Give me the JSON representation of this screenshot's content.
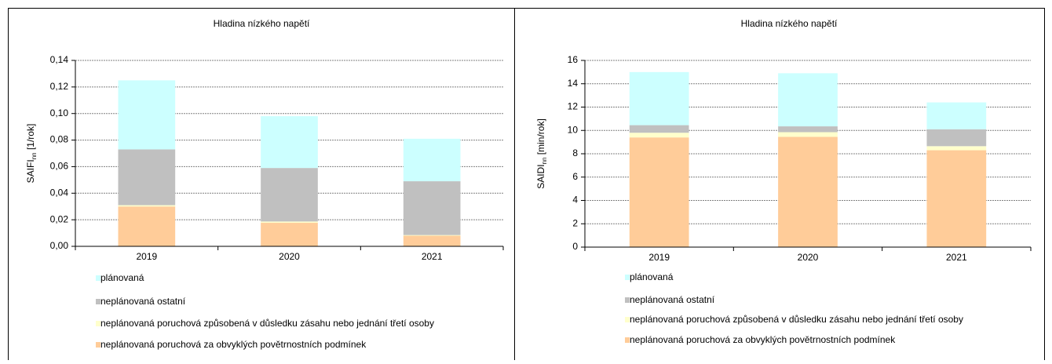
{
  "chart_data": [
    {
      "type": "bar",
      "stacked": true,
      "title": "Hladina nízkého napětí",
      "ylabel": {
        "main": "SAIFI",
        "sub": "nn",
        "unit": " [1/rok]"
      },
      "categories": [
        "2019",
        "2020",
        "2021"
      ],
      "series": [
        {
          "name": "neplánovaná poruchová za obvyklých povětrnostních podmínek",
          "color": "#ffcc99",
          "values": [
            0.03,
            0.0177,
            0.008
          ]
        },
        {
          "name": "neplánovaná poruchová způsobená v důsledku zásahu nebo jednání třetí osoby",
          "color": "#ffffcc",
          "values": [
            0.001,
            0.001,
            0.0005
          ]
        },
        {
          "name": "neplánovaná ostatní",
          "color": "#c0c0c0",
          "values": [
            0.042,
            0.0403,
            0.0405
          ]
        },
        {
          "name": "plánovaná",
          "color": "#ccffff",
          "values": [
            0.052,
            0.039,
            0.032
          ]
        }
      ],
      "ylim": [
        0,
        0.14
      ],
      "yticks": [
        {
          "value": 0,
          "label": "0,00"
        },
        {
          "value": 0.02,
          "label": "0,02"
        },
        {
          "value": 0.04,
          "label": "0,04"
        },
        {
          "value": 0.06,
          "label": "0,06"
        },
        {
          "value": 0.08,
          "label": "0,08"
        },
        {
          "value": 0.1,
          "label": "0,10"
        },
        {
          "value": 0.12,
          "label": "0,12"
        },
        {
          "value": 0.14,
          "label": "0,14"
        }
      ],
      "grid": true
    },
    {
      "type": "bar",
      "stacked": true,
      "title": "Hladina nízkého napětí",
      "ylabel": {
        "main": "SAIDI",
        "sub": "nn",
        "unit": " [min/rok]"
      },
      "categories": [
        "2019",
        "2020",
        "2021"
      ],
      "series": [
        {
          "name": "neplánovaná poruchová za obvyklých povětrnostních podmínek",
          "color": "#ffcc99",
          "values": [
            9.4,
            9.45,
            8.3
          ]
        },
        {
          "name": "neplánovaná poruchová způsobená v důsledku zásahu nebo jednání třetí osoby",
          "color": "#ffffcc",
          "values": [
            0.4,
            0.4,
            0.35
          ]
        },
        {
          "name": "neplánovaná ostatní",
          "color": "#c0c0c0",
          "values": [
            0.65,
            0.5,
            1.45
          ]
        },
        {
          "name": "plánovaná",
          "color": "#ccffff",
          "values": [
            4.55,
            4.55,
            2.3
          ]
        }
      ],
      "ylim": [
        0,
        16
      ],
      "yticks": [
        0,
        2,
        4,
        6,
        8,
        10,
        12,
        14,
        16
      ],
      "grid": true
    }
  ]
}
